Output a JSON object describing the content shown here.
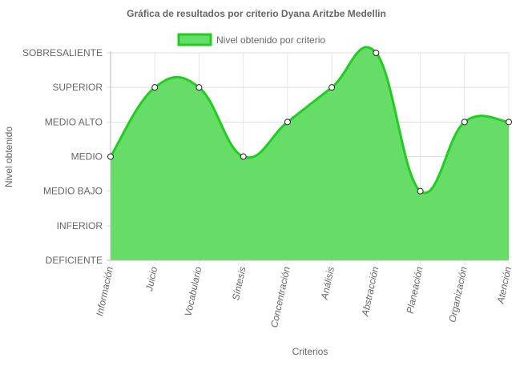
{
  "chart_data": {
    "type": "area",
    "title": "Gráfica de resultados por criterio Dyana Aritzbe Medellin",
    "xlabel": "Criterios",
    "ylabel": "Nivel obtenido",
    "legend_position": "top",
    "grid": true,
    "y_levels": [
      "DEFICIENTE",
      "INFERIOR",
      "MEDIO BAJO",
      "MEDIO",
      "MEDIO ALTO",
      "SUPERIOR",
      "SOBRESALIENTE"
    ],
    "ylim": [
      0,
      6
    ],
    "categories": [
      "Información",
      "Juicio",
      "Vocabulario",
      "Síntesis",
      "Concentración",
      "Análisis",
      "Abstracción",
      "Planeación",
      "Organización",
      "Atención"
    ],
    "series": [
      {
        "name": "Nivel obtenido por criterio",
        "values": [
          3,
          5,
          5,
          3,
          4,
          5,
          6,
          2,
          4,
          4
        ],
        "fill_color": "#66dd66",
        "line_color": "#22cc22"
      }
    ]
  }
}
